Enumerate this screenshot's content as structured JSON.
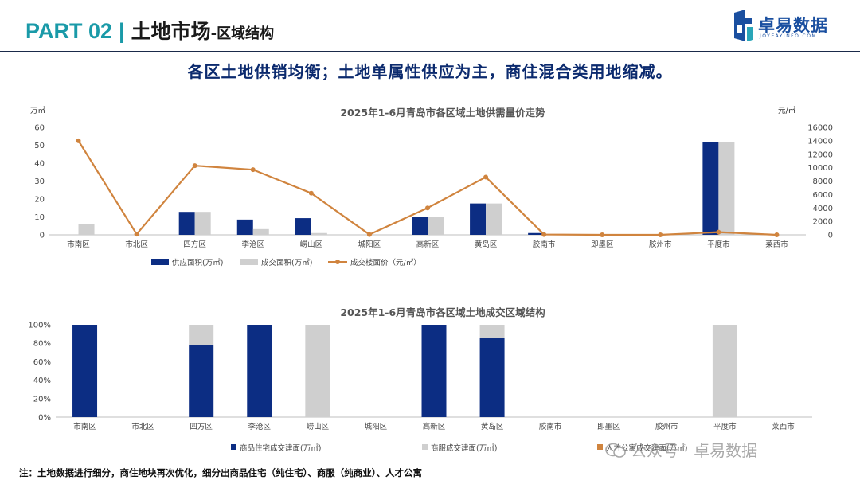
{
  "header": {
    "part": "PART 02",
    "separator": "|",
    "title": "土地市场",
    "subtitle": "-区域结构",
    "brand_name": "卓易数据",
    "brand_url": "JOYEAYINFO.COM"
  },
  "headline": "各区土地供销均衡；土地单属性供应为主，商住混合类用地缩减。",
  "colors": {
    "supply": "#0c2d83",
    "deal": "#cfcfcf",
    "price": "#d0843e",
    "header_teal": "#1a9aa8",
    "headline_navy": "#0b2a6e"
  },
  "chart_data": [
    {
      "type": "bar",
      "title": "2025年1-6月青岛市各区域土地供需量价走势",
      "ylabel": "万㎡",
      "ylabel_right": "元/㎡",
      "ylim": [
        0,
        60
      ],
      "yticks": [
        "0",
        "10",
        "20",
        "30",
        "40",
        "50",
        "60"
      ],
      "ylim_right": [
        0,
        16000
      ],
      "yticks_right": [
        "0",
        "2000",
        "4000",
        "6000",
        "8000",
        "10000",
        "12000",
        "14000",
        "16000"
      ],
      "categories": [
        "市南区",
        "市北区",
        "四方区",
        "李沧区",
        "崂山区",
        "城阳区",
        "高新区",
        "黄岛区",
        "胶南市",
        "即墨区",
        "胶州市",
        "平度市",
        "莱西市"
      ],
      "series": [
        {
          "name": "供应面积(万㎡)",
          "type": "bar",
          "axis": "left",
          "values": [
            0,
            0,
            12.8,
            8.5,
            9.3,
            0,
            10,
            17.5,
            1,
            0,
            0,
            52,
            0
          ]
        },
        {
          "name": "成交面积(万㎡)",
          "type": "bar",
          "axis": "left",
          "values": [
            6,
            0,
            12.8,
            3.2,
            1,
            0,
            10,
            17.5,
            0,
            0,
            0,
            52,
            0
          ]
        },
        {
          "name": "成交楼面价（元/㎡）",
          "type": "line",
          "axis": "right",
          "values": [
            14000,
            100,
            10300,
            9700,
            6200,
            50,
            4000,
            8600,
            50,
            0,
            0,
            400,
            0
          ]
        }
      ],
      "legend": [
        "供应面积(万㎡)",
        "成交面积(万㎡)",
        "成交楼面价（元/㎡）"
      ],
      "legend_position": "bottom"
    },
    {
      "type": "bar",
      "title": "2025年1-6月青岛市各区域土地成交区域结构",
      "ylim": [
        0,
        100
      ],
      "yticks": [
        "0%",
        "20%",
        "40%",
        "60%",
        "80%",
        "100%"
      ],
      "stacked": true,
      "categories": [
        "市南区",
        "市北区",
        "四方区",
        "李沧区",
        "崂山区",
        "城阳区",
        "高新区",
        "黄岛区",
        "胶南市",
        "即墨区",
        "胶州市",
        "平度市",
        "莱西市"
      ],
      "series": [
        {
          "name": "商品住宅成交建面(万㎡)",
          "values": [
            100,
            0,
            78,
            100,
            0,
            0,
            100,
            86,
            0,
            0,
            0,
            0,
            0
          ]
        },
        {
          "name": "商服成交建面(万㎡)",
          "values": [
            0,
            0,
            22,
            0,
            100,
            0,
            0,
            14,
            0,
            0,
            0,
            100,
            0
          ]
        },
        {
          "name": "人才公寓成交建面(万㎡)",
          "values": [
            0,
            0,
            0,
            0,
            0,
            0,
            0,
            0,
            0,
            0,
            0,
            0,
            0
          ]
        }
      ],
      "legend": [
        "商品住宅成交建面(万㎡)",
        "商服成交建面(万㎡)",
        "人才公寓成交建面(万㎡)"
      ],
      "legend_position": "bottom"
    }
  ],
  "footnote": "注：土地数据进行细分，商住地块再次优化，细分出商品住宅（纯住宅）、商服（纯商业）、人才公寓",
  "watermark": "公众号 · 卓易数据"
}
